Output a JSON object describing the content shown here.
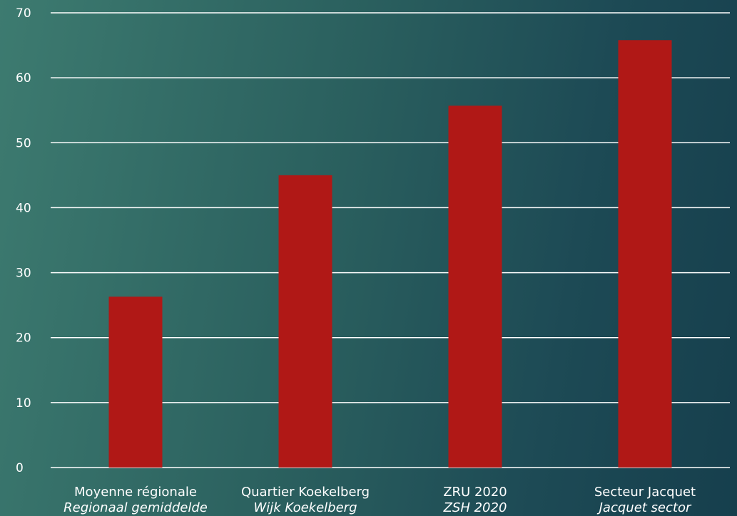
{
  "chart_data": {
    "type": "bar",
    "categories": [
      {
        "line1": "Moyenne régionale",
        "line2": "Regionaal gemiddelde"
      },
      {
        "line1": "Quartier Koekelberg",
        "line2": "Wijk Koekelberg"
      },
      {
        "line1": "ZRU 2020",
        "line2": "ZSH 2020"
      },
      {
        "line1": "Secteur Jacquet",
        "line2": "Jacquet sector"
      }
    ],
    "values": [
      26.3,
      45,
      55.7,
      65.8
    ],
    "ylim": [
      0,
      70
    ],
    "yticks": [
      0,
      10,
      20,
      30,
      40,
      50,
      60,
      70
    ],
    "grid": true,
    "bar_color": "#b01816",
    "title": "",
    "xlabel": "",
    "ylabel": ""
  }
}
